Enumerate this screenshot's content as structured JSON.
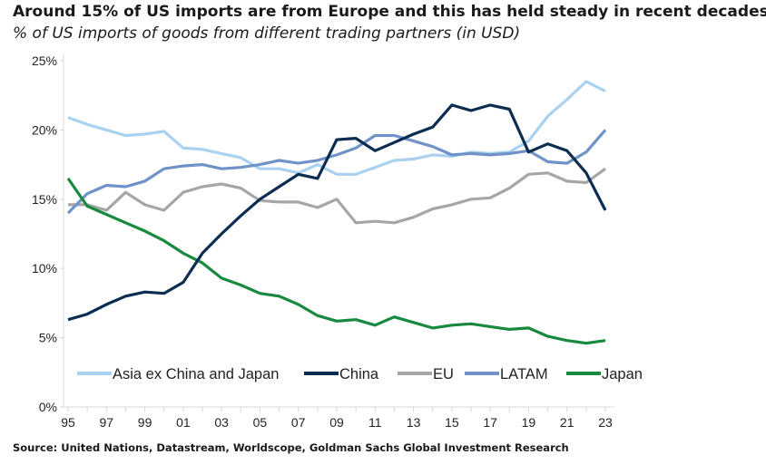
{
  "title": "Around 15% of US imports are from Europe and this has held steady in recent decades",
  "subtitle": "% of US imports of goods from different trading partners (in USD)",
  "source": "Source: United Nations, Datastream, Worldscope, Goldman Sachs Global Investment Research",
  "chart_data": {
    "type": "line",
    "title": "Around 15% of US imports are from Europe and this has held steady in recent decades",
    "subtitle": "% of US imports of goods from different trading partners (in USD)",
    "x": [
      1995,
      1996,
      1997,
      1998,
      1999,
      2000,
      2001,
      2002,
      2003,
      2004,
      2005,
      2006,
      2007,
      2008,
      2009,
      2010,
      2011,
      2012,
      2013,
      2014,
      2015,
      2016,
      2017,
      2018,
      2019,
      2020,
      2021,
      2022,
      2023
    ],
    "x_tick_labels": [
      "95",
      "97",
      "99",
      "01",
      "03",
      "05",
      "07",
      "09",
      "11",
      "13",
      "15",
      "17",
      "19",
      "21",
      "23"
    ],
    "y_tick_labels": [
      "0%",
      "5%",
      "10%",
      "15%",
      "20%",
      "25%"
    ],
    "ylim": [
      0,
      25
    ],
    "grid": false,
    "legend_placement": "bottom-inside",
    "series": [
      {
        "name": "Asia ex China and Japan",
        "color": "#a9d1f0",
        "values": [
          20.9,
          20.4,
          20.0,
          19.6,
          19.7,
          19.9,
          18.7,
          18.6,
          18.3,
          18.0,
          17.2,
          17.2,
          16.9,
          17.5,
          16.8,
          16.8,
          17.3,
          17.8,
          17.9,
          18.2,
          18.1,
          18.4,
          18.3,
          18.4,
          19.2,
          21.0,
          22.2,
          23.5,
          22.8
        ]
      },
      {
        "name": "China",
        "color": "#0b2d52",
        "values": [
          6.3,
          6.7,
          7.4,
          8.0,
          8.3,
          8.2,
          9.0,
          11.1,
          12.5,
          13.8,
          15.0,
          15.9,
          16.8,
          16.5,
          19.3,
          19.4,
          18.5,
          19.1,
          19.7,
          20.2,
          21.8,
          21.4,
          21.8,
          21.5,
          18.4,
          19.0,
          18.5,
          16.9,
          14.2
        ]
      },
      {
        "name": "EU",
        "color": "#a6a6a6",
        "values": [
          14.6,
          14.6,
          14.2,
          15.5,
          14.6,
          14.2,
          15.5,
          15.9,
          16.1,
          15.8,
          14.9,
          14.8,
          14.8,
          14.4,
          15.0,
          13.3,
          13.4,
          13.3,
          13.7,
          14.3,
          14.6,
          15.0,
          15.1,
          15.8,
          16.8,
          16.9,
          16.3,
          16.2,
          17.2
        ]
      },
      {
        "name": "LATAM",
        "color": "#6f93c8",
        "values": [
          14.0,
          15.4,
          16.0,
          15.9,
          16.3,
          17.2,
          17.4,
          17.5,
          17.2,
          17.3,
          17.5,
          17.8,
          17.6,
          17.8,
          18.2,
          18.7,
          19.6,
          19.6,
          19.2,
          18.8,
          18.2,
          18.3,
          18.2,
          18.3,
          18.5,
          17.7,
          17.6,
          18.4,
          20.0
        ]
      },
      {
        "name": "Japan",
        "color": "#188a3f",
        "values": [
          16.5,
          14.5,
          13.9,
          13.3,
          12.7,
          12.0,
          11.1,
          10.4,
          9.3,
          8.8,
          8.2,
          8.0,
          7.4,
          6.6,
          6.2,
          6.3,
          5.9,
          6.5,
          6.1,
          5.7,
          5.9,
          6.0,
          5.8,
          5.6,
          5.7,
          5.1,
          4.8,
          4.6,
          4.8
        ]
      }
    ]
  }
}
